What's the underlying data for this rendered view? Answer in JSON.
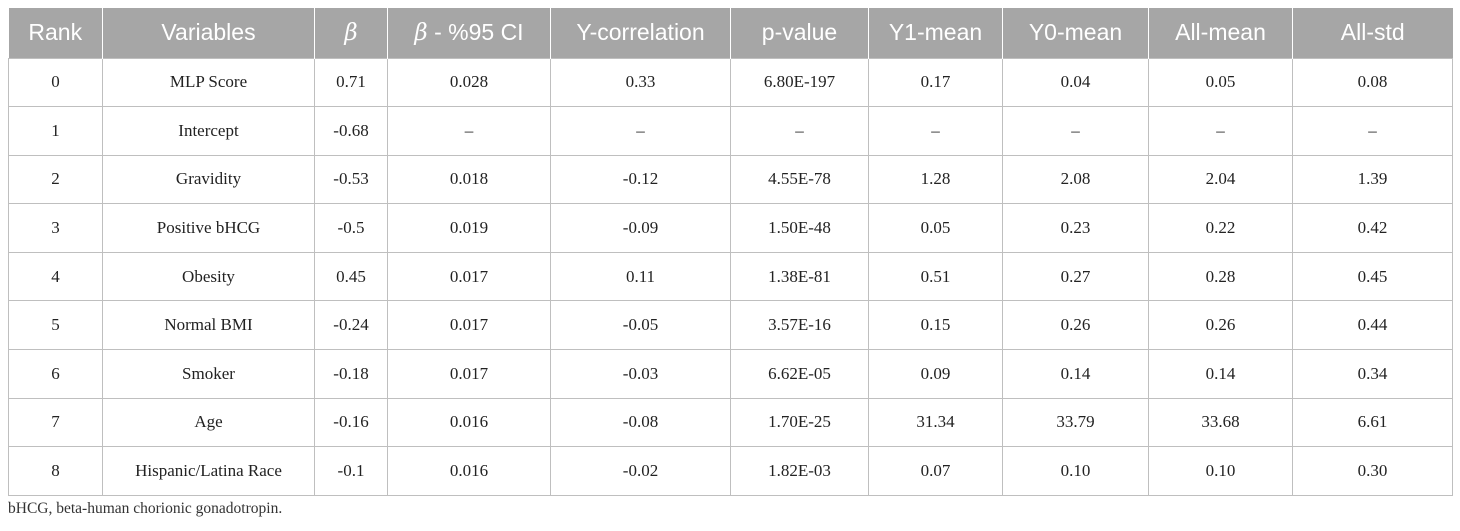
{
  "table": {
    "headers": [
      {
        "prefix": "",
        "text": "Rank"
      },
      {
        "prefix": "",
        "text": "Variables"
      },
      {
        "prefix": "β",
        "text": ""
      },
      {
        "prefix": "β",
        "text": " - %95 CI"
      },
      {
        "prefix": "",
        "text": "Y-correlation"
      },
      {
        "prefix": "",
        "text": "p-value"
      },
      {
        "prefix": "",
        "text": "Y1-mean"
      },
      {
        "prefix": "",
        "text": "Y0-mean"
      },
      {
        "prefix": "",
        "text": "All-mean"
      },
      {
        "prefix": "",
        "text": "All-std"
      }
    ],
    "rows": [
      [
        "0",
        "MLP Score",
        "0.71",
        "0.028",
        "0.33",
        "6.80E-197",
        "0.17",
        "0.04",
        "0.05",
        "0.08"
      ],
      [
        "1",
        "Intercept",
        "-0.68",
        "–",
        "–",
        "–",
        "–",
        "–",
        "–",
        "–"
      ],
      [
        "2",
        "Gravidity",
        "-0.53",
        "0.018",
        "-0.12",
        "4.55E-78",
        "1.28",
        "2.08",
        "2.04",
        "1.39"
      ],
      [
        "3",
        "Positive bHCG",
        "-0.5",
        "0.019",
        "-0.09",
        "1.50E-48",
        "0.05",
        "0.23",
        "0.22",
        "0.42"
      ],
      [
        "4",
        "Obesity",
        "0.45",
        "0.017",
        "0.11",
        "1.38E-81",
        "0.51",
        "0.27",
        "0.28",
        "0.45"
      ],
      [
        "5",
        "Normal BMI",
        "-0.24",
        "0.017",
        "-0.05",
        "3.57E-16",
        "0.15",
        "0.26",
        "0.26",
        "0.44"
      ],
      [
        "6",
        "Smoker",
        "-0.18",
        "0.017",
        "-0.03",
        "6.62E-05",
        "0.09",
        "0.14",
        "0.14",
        "0.34"
      ],
      [
        "7",
        "Age",
        "-0.16",
        "0.016",
        "-0.08",
        "1.70E-25",
        "31.34",
        "33.79",
        "33.68",
        "6.61"
      ],
      [
        "8",
        "Hispanic/Latina Race",
        "-0.1",
        "0.016",
        "-0.02",
        "1.82E-03",
        "0.07",
        "0.10",
        "0.10",
        "0.30"
      ]
    ]
  },
  "footnote": "bHCG, beta-human chorionic gonadotropin.",
  "colors": {
    "header_background": "#a6a6a6",
    "header_text": "#ffffff",
    "grid_line": "#bfbfbf",
    "cell_text": "#222222"
  }
}
